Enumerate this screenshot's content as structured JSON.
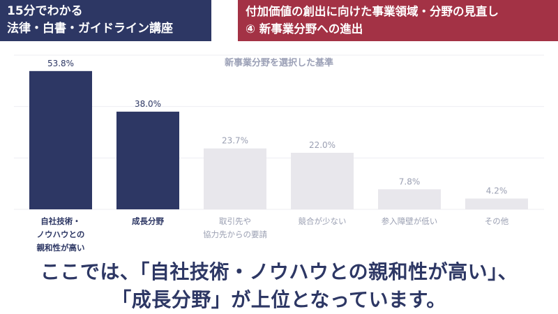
{
  "header": {
    "left_line1": "15分でわかる",
    "left_line2": "法律・白書・ガイドライン講座",
    "right_line1": "付加価値の創出に向けた事業領域・分野の見直し",
    "right_line2": "④ 新事業分野への進出"
  },
  "colors": {
    "header_left_bg": "#2d3764",
    "header_right_bg": "#a33245",
    "highlight_bar": "#2d3764",
    "muted_bar": "#e8e7ec",
    "highlight_text": "#2d3764",
    "muted_text": "#9a9fb2"
  },
  "chart_data": {
    "type": "bar",
    "title": "新事業分野を選択した基準",
    "categories": [
      [
        "自社技術・",
        "ノウハウとの",
        "親和性が高い"
      ],
      [
        "成長分野"
      ],
      [
        "取引先や",
        "協力先からの要請"
      ],
      [
        "競合が少ない"
      ],
      [
        "参入障壁が低い"
      ],
      [
        "その他"
      ]
    ],
    "values": [
      53.8,
      38.0,
      23.7,
      22.0,
      7.8,
      4.2
    ],
    "value_labels": [
      "53.8%",
      "38.0%",
      "23.7%",
      "22.0%",
      "7.8%",
      "4.2%"
    ],
    "highlighted": [
      true,
      true,
      false,
      false,
      false,
      false
    ],
    "ylim": [
      0,
      60
    ],
    "grid": true
  },
  "caption": {
    "line1": "ここでは、「自社技術・ノウハウとの親和性が高い」、",
    "line2": "「成長分野」が上位となっています。"
  }
}
